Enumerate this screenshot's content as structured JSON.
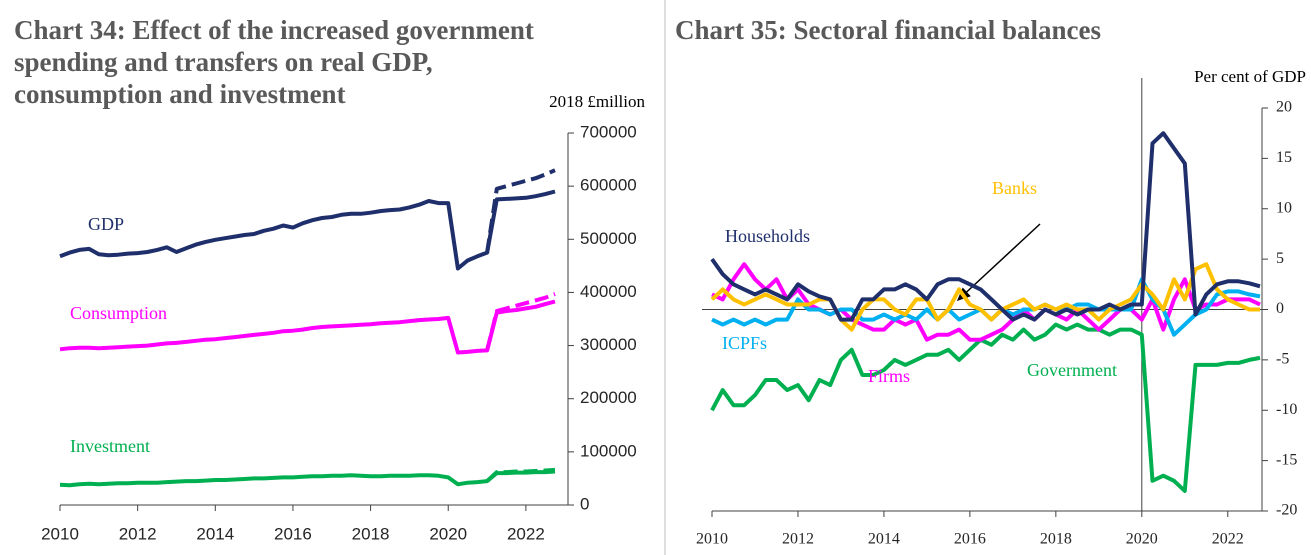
{
  "chart_data": [
    {
      "type": "line",
      "title": "Chart 34: Effect of the increased government spending and transfers on real GDP, consumption and investment",
      "y_label": "2018 £million",
      "x": [
        2010,
        2010.25,
        2010.5,
        2010.75,
        2011,
        2011.25,
        2011.5,
        2011.75,
        2012,
        2012.25,
        2012.5,
        2012.75,
        2013,
        2013.25,
        2013.5,
        2013.75,
        2014,
        2014.25,
        2014.5,
        2014.75,
        2015,
        2015.25,
        2015.5,
        2015.75,
        2016,
        2016.25,
        2016.5,
        2016.75,
        2017,
        2017.25,
        2017.5,
        2017.75,
        2018,
        2018.25,
        2018.5,
        2018.75,
        2019,
        2019.25,
        2019.5,
        2019.75,
        2020,
        2020.25,
        2020.5,
        2020.75,
        2021,
        2021.25,
        2021.5,
        2021.75,
        2022,
        2022.25,
        2022.5,
        2022.75
      ],
      "xlim": [
        2010,
        2022.75
      ],
      "xticks": [
        2010,
        2012,
        2014,
        2016,
        2018,
        2020,
        2022
      ],
      "ylim": [
        0,
        700000
      ],
      "yticks": [
        0,
        100000,
        200000,
        300000,
        400000,
        500000,
        600000,
        700000
      ],
      "series": [
        {
          "name": "GDP",
          "color": "#1f2f6b",
          "values": [
            468000,
            475000,
            480000,
            482000,
            472000,
            470000,
            471000,
            473000,
            474000,
            476000,
            480000,
            485000,
            476000,
            483000,
            490000,
            495000,
            499000,
            502000,
            505000,
            508000,
            510000,
            516000,
            520000,
            526000,
            522000,
            530000,
            536000,
            540000,
            542000,
            546000,
            548000,
            548000,
            550000,
            553000,
            555000,
            556000,
            560000,
            565000,
            572000,
            568000,
            568000,
            445000,
            460000,
            468000,
            475000,
            575000,
            576000,
            577000,
            578000,
            581000,
            585000,
            590000
          ]
        },
        {
          "name": "Consumption",
          "color": "#ff00ff",
          "values": [
            293000,
            295000,
            296000,
            296000,
            295000,
            296000,
            297000,
            298000,
            299000,
            300000,
            302000,
            304000,
            305000,
            307000,
            309000,
            311000,
            312000,
            314000,
            316000,
            318000,
            320000,
            322000,
            324000,
            327000,
            328000,
            330000,
            333000,
            335000,
            336000,
            337000,
            338000,
            339000,
            340000,
            342000,
            343000,
            344000,
            346000,
            348000,
            349000,
            350000,
            352000,
            287000,
            288000,
            290000,
            291000,
            362000,
            365000,
            367000,
            370000,
            373000,
            378000,
            383000
          ]
        },
        {
          "name": "Investment",
          "color": "#00b050",
          "values": [
            38000,
            37000,
            39000,
            40000,
            39000,
            40000,
            41000,
            41000,
            42000,
            42000,
            42000,
            43000,
            44000,
            45000,
            45000,
            46000,
            47000,
            47000,
            48000,
            49000,
            50000,
            50000,
            51000,
            52000,
            52000,
            53000,
            54000,
            54000,
            55000,
            55000,
            56000,
            55000,
            54000,
            54000,
            55000,
            55000,
            55000,
            56000,
            56000,
            55000,
            52000,
            39000,
            42000,
            43000,
            45000,
            60000,
            60000,
            61000,
            61000,
            62000,
            62000,
            63000
          ]
        },
        {
          "color": "#1f2f6b",
          "style": "dashed",
          "values": [
            null,
            null,
            null,
            null,
            null,
            null,
            null,
            null,
            null,
            null,
            null,
            null,
            null,
            null,
            null,
            null,
            null,
            null,
            null,
            null,
            null,
            null,
            null,
            null,
            null,
            null,
            null,
            null,
            null,
            null,
            null,
            null,
            null,
            null,
            null,
            null,
            null,
            null,
            null,
            null,
            null,
            null,
            null,
            null,
            475000,
            595000,
            600000,
            605000,
            610000,
            615000,
            622000,
            630000
          ]
        },
        {
          "color": "#ff00ff",
          "style": "dashed",
          "values": [
            null,
            null,
            null,
            null,
            null,
            null,
            null,
            null,
            null,
            null,
            null,
            null,
            null,
            null,
            null,
            null,
            null,
            null,
            null,
            null,
            null,
            null,
            null,
            null,
            null,
            null,
            null,
            null,
            null,
            null,
            null,
            null,
            null,
            null,
            null,
            null,
            null,
            null,
            null,
            null,
            null,
            null,
            null,
            null,
            291000,
            365000,
            370000,
            375000,
            380000,
            385000,
            390000,
            397000
          ]
        },
        {
          "color": "#00b050",
          "style": "dashed",
          "values": [
            null,
            null,
            null,
            null,
            null,
            null,
            null,
            null,
            null,
            null,
            null,
            null,
            null,
            null,
            null,
            null,
            null,
            null,
            null,
            null,
            null,
            null,
            null,
            null,
            null,
            null,
            null,
            null,
            null,
            null,
            null,
            null,
            null,
            null,
            null,
            null,
            null,
            null,
            null,
            null,
            null,
            null,
            null,
            null,
            45000,
            62000,
            62000,
            63000,
            63000,
            64000,
            65000,
            66000
          ]
        }
      ]
    },
    {
      "type": "line",
      "title": "Chart 35: Sectoral financial balances",
      "y_label": "Per cent of GDP",
      "x": [
        2010,
        2010.25,
        2010.5,
        2010.75,
        2011,
        2011.25,
        2011.5,
        2011.75,
        2012,
        2012.25,
        2012.5,
        2012.75,
        2013,
        2013.25,
        2013.5,
        2013.75,
        2014,
        2014.25,
        2014.5,
        2014.75,
        2015,
        2015.25,
        2015.5,
        2015.75,
        2016,
        2016.25,
        2016.5,
        2016.75,
        2017,
        2017.25,
        2017.5,
        2017.75,
        2018,
        2018.25,
        2018.5,
        2018.75,
        2019,
        2019.25,
        2019.5,
        2019.75,
        2020,
        2020.25,
        2020.5,
        2020.75,
        2021,
        2021.25,
        2021.5,
        2021.75,
        2022,
        2022.25,
        2022.5,
        2022.75
      ],
      "xlim": [
        2010,
        2022.75
      ],
      "xticks": [
        2010,
        2012,
        2014,
        2016,
        2018,
        2020,
        2022
      ],
      "ylim": [
        -20,
        20
      ],
      "yticks": [
        -20,
        -15,
        -10,
        -5,
        0,
        5,
        10,
        15,
        20
      ],
      "vline_x": 2020,
      "zero_line": true,
      "series": [
        {
          "name": "Government",
          "color": "#00b050",
          "values": [
            -10,
            -8,
            -9.5,
            -9.5,
            -8.5,
            -7,
            -7,
            -8,
            -7.5,
            -9,
            -7,
            -7.5,
            -5,
            -4,
            -6.5,
            -6.5,
            -6,
            -5,
            -5.5,
            -5,
            -4.5,
            -4.5,
            -4,
            -5,
            -4,
            -3,
            -3.5,
            -2.5,
            -3,
            -2,
            -3,
            -2.5,
            -1.5,
            -2,
            -1.5,
            -2,
            -2,
            -2.5,
            -2,
            -2,
            -2.5,
            -17,
            -16.5,
            -17,
            -18,
            -5.5,
            -5.5,
            -5.5,
            -5.3,
            -5.3,
            -5,
            -4.8
          ]
        },
        {
          "name": "Firms",
          "color": "#ff00ff",
          "values": [
            1.5,
            1,
            3,
            4.5,
            3,
            2,
            3,
            1,
            2,
            0.5,
            0,
            -0.5,
            0,
            -1,
            -1.5,
            -2,
            -2,
            -1,
            -1.5,
            -1,
            -3,
            -2.5,
            -2.5,
            -2,
            -3,
            -3,
            -2.5,
            -2,
            -1,
            0,
            -1,
            0,
            -0.5,
            -1,
            0,
            -1,
            -2,
            -1,
            0,
            0,
            -1,
            1,
            -2,
            1,
            3,
            0,
            0.5,
            0.5,
            1,
            1,
            1,
            0.5
          ]
        },
        {
          "name": "ICPFs",
          "color": "#00b0f0",
          "values": [
            -1,
            -1.5,
            -1,
            -1.5,
            -1,
            -1.5,
            -1,
            -1,
            1,
            0,
            0,
            -0.5,
            0,
            0,
            -1,
            -1,
            -0.5,
            -1,
            -0.5,
            -1,
            0,
            -1,
            0,
            -1,
            -0.5,
            0,
            -1,
            0,
            -0.5,
            0,
            0,
            0.5,
            0,
            0,
            0.5,
            0.5,
            0,
            0,
            0,
            0,
            3,
            1,
            0,
            -2.5,
            -1.5,
            -0.5,
            0,
            1.5,
            1.8,
            1.8,
            1.5,
            1.3
          ]
        },
        {
          "name": "Banks",
          "color": "#ffc000",
          "values": [
            1,
            2,
            1,
            0.5,
            1,
            1.5,
            1,
            0.5,
            0.5,
            0.5,
            1,
            1,
            -1,
            -2,
            0,
            1,
            1,
            0,
            -0.5,
            1,
            1,
            -1,
            0,
            2,
            0.5,
            0,
            -1,
            0,
            0.5,
            1,
            0,
            0.5,
            0,
            0.5,
            0,
            0,
            -1,
            0,
            0.5,
            1,
            2.5,
            1.5,
            0,
            3,
            1,
            4,
            4.5,
            2,
            1,
            0.5,
            0,
            0
          ]
        },
        {
          "name": "Households",
          "color": "#1f2f6b",
          "values": [
            5,
            3.5,
            2.5,
            2,
            1.5,
            2,
            1.5,
            1,
            2.5,
            1.8,
            1.3,
            1,
            -1,
            -1,
            1,
            1,
            2,
            2,
            2.5,
            2,
            1,
            2.5,
            3,
            3,
            2.5,
            2,
            1,
            0,
            -1,
            -0.5,
            -1,
            0,
            -0.5,
            0,
            -0.5,
            0,
            0,
            0.5,
            0,
            0.5,
            0.5,
            16.5,
            17.5,
            16,
            14.5,
            -0.5,
            1.5,
            2.5,
            2.8,
            2.8,
            2.6,
            2.3
          ]
        }
      ]
    }
  ]
}
